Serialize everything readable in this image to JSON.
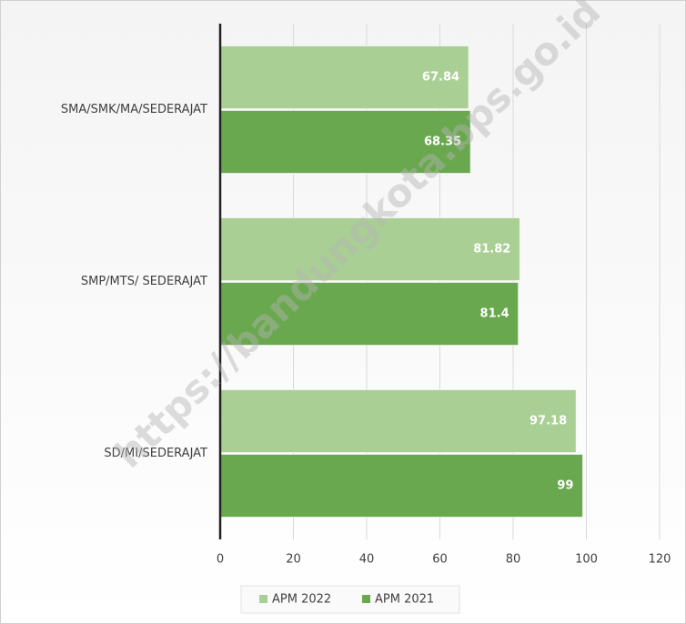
{
  "chart_data": {
    "type": "barh",
    "categories": [
      "SMA/SMK/MA/SEDERAJAT",
      "SMP/MTS/ SEDERAJAT",
      "SD/MI/SEDERAJAT"
    ],
    "series": [
      {
        "name": "APM 2022",
        "color": "#a9cf94",
        "values": [
          67.84,
          81.82,
          97.18
        ]
      },
      {
        "name": "APM 2021",
        "color": "#6aa84f",
        "values": [
          68.35,
          81.4,
          99
        ]
      }
    ],
    "xlim": [
      0,
      120
    ],
    "xticks": [
      0,
      20,
      40,
      60,
      80,
      100,
      120
    ],
    "grid": true,
    "legend": "bottom"
  },
  "watermark": "https://bandungkota.bps.go.id"
}
